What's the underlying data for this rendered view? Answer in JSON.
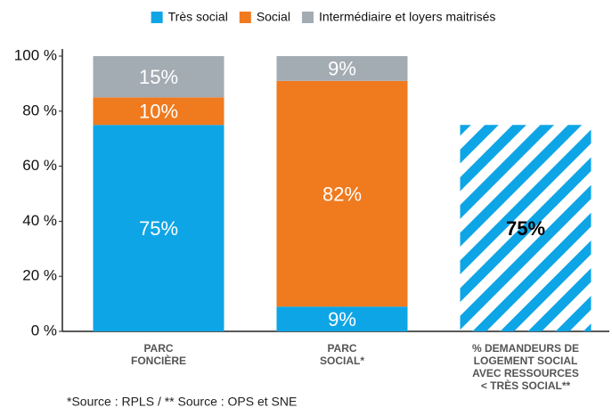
{
  "chart_data": {
    "type": "stacked_bar",
    "categories": [
      "PARC\nFONCIÈRE",
      "PARC\nSOCIAL*",
      "% DEMANDEURS DE\nLOGEMENT SOCIAL\nAVEC RESSOURCES\n< TRÈS SOCIAL**"
    ],
    "series": [
      {
        "name": "Très social",
        "color": "#0ea5e6",
        "values": [
          75,
          9,
          75
        ],
        "value_labels": [
          "75%",
          "9%",
          "75%"
        ],
        "hatched": [
          false,
          false,
          true
        ]
      },
      {
        "name": "Social",
        "color": "#f07a1e",
        "values": [
          10,
          82,
          null
        ],
        "value_labels": [
          "10%",
          "82%",
          null
        ]
      },
      {
        "name": "Intermédiaire et loyers maitrisés",
        "color": "#a3abb3",
        "values": [
          15,
          9,
          null
        ],
        "value_labels": [
          "15%",
          "9%",
          null
        ]
      }
    ],
    "ylim": [
      0,
      100
    ],
    "yticks": [
      {
        "value": 0,
        "label": "0 %"
      },
      {
        "value": 20,
        "label": "20 %"
      },
      {
        "value": 40,
        "label": "40 %"
      },
      {
        "value": 60,
        "label": "60 %"
      },
      {
        "value": 80,
        "label": "80 %"
      },
      {
        "value": 100,
        "label": "100 %"
      }
    ],
    "grid": false,
    "legend": "top",
    "footnote": "*Source : RPLS / ** Source : OPS et SNE"
  }
}
